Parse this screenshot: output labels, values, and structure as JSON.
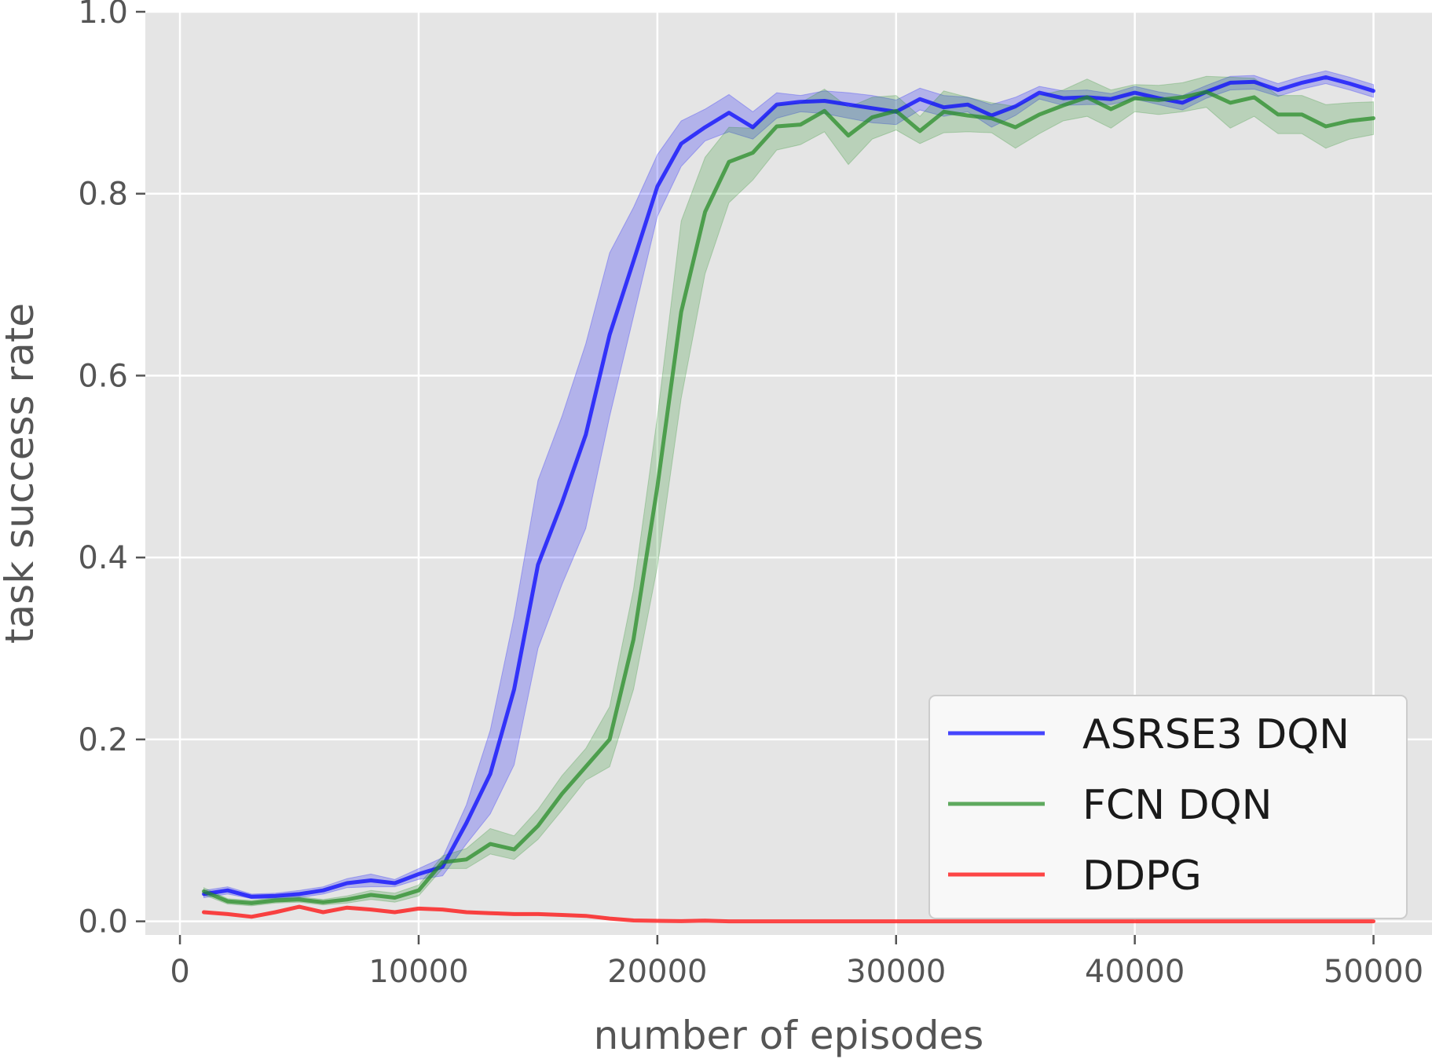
{
  "chart_data": {
    "type": "line",
    "title": "",
    "xlabel": "number of episodes",
    "ylabel": "task success rate",
    "xlim": [
      -1450,
      52450
    ],
    "ylim": [
      -0.015,
      1.0
    ],
    "xticks": [
      0,
      10000,
      20000,
      30000,
      40000,
      50000
    ],
    "xtick_labels": [
      "0",
      "10000",
      "20000",
      "30000",
      "40000",
      "50000"
    ],
    "yticks": [
      0.0,
      0.2,
      0.4,
      0.6,
      0.8,
      1.0
    ],
    "ytick_labels": [
      "0.0",
      "0.2",
      "0.4",
      "0.6",
      "0.8",
      "1.0"
    ],
    "grid": true,
    "legend_position": "lower-right",
    "x": [
      1000,
      2000,
      3000,
      4000,
      5000,
      6000,
      7000,
      8000,
      9000,
      10000,
      11000,
      12000,
      13000,
      14000,
      15000,
      16000,
      17000,
      18000,
      19000,
      20000,
      21000,
      22000,
      23000,
      24000,
      25000,
      26000,
      27000,
      28000,
      29000,
      30000,
      31000,
      32000,
      33000,
      34000,
      35000,
      36000,
      37000,
      38000,
      39000,
      40000,
      41000,
      42000,
      43000,
      44000,
      45000,
      46000,
      47000,
      48000,
      49000,
      50000
    ],
    "series": [
      {
        "name": "ASRSE3 DQN",
        "color": "#0000ff",
        "values": [
          0.03,
          0.034,
          0.027,
          0.028,
          0.03,
          0.034,
          0.042,
          0.045,
          0.042,
          0.052,
          0.06,
          0.108,
          0.162,
          0.255,
          0.392,
          0.46,
          0.535,
          0.645,
          0.726,
          0.808,
          0.855,
          0.873,
          0.889,
          0.873,
          0.898,
          0.901,
          0.902,
          0.898,
          0.894,
          0.89,
          0.904,
          0.895,
          0.898,
          0.886,
          0.896,
          0.911,
          0.905,
          0.906,
          0.904,
          0.911,
          0.905,
          0.9,
          0.912,
          0.922,
          0.923,
          0.914,
          0.922,
          0.928,
          0.921,
          0.913
        ],
        "lower": [
          0.026,
          0.03,
          0.025,
          0.025,
          0.026,
          0.03,
          0.037,
          0.038,
          0.038,
          0.046,
          0.05,
          0.085,
          0.118,
          0.172,
          0.3,
          0.37,
          0.432,
          0.555,
          0.665,
          0.775,
          0.83,
          0.858,
          0.868,
          0.86,
          0.883,
          0.89,
          0.888,
          0.883,
          0.878,
          0.876,
          0.892,
          0.885,
          0.89,
          0.873,
          0.886,
          0.904,
          0.897,
          0.898,
          0.898,
          0.904,
          0.898,
          0.892,
          0.905,
          0.914,
          0.915,
          0.907,
          0.915,
          0.921,
          0.914,
          0.906
        ],
        "upper": [
          0.034,
          0.038,
          0.03,
          0.031,
          0.034,
          0.038,
          0.047,
          0.052,
          0.046,
          0.058,
          0.07,
          0.128,
          0.21,
          0.335,
          0.485,
          0.555,
          0.635,
          0.735,
          0.785,
          0.843,
          0.88,
          0.893,
          0.909,
          0.89,
          0.911,
          0.908,
          0.913,
          0.911,
          0.908,
          0.903,
          0.916,
          0.908,
          0.906,
          0.898,
          0.906,
          0.918,
          0.913,
          0.914,
          0.91,
          0.918,
          0.912,
          0.908,
          0.919,
          0.929,
          0.93,
          0.921,
          0.929,
          0.935,
          0.928,
          0.92
        ]
      },
      {
        "name": "FCN DQN",
        "color": "#228b22",
        "values": [
          0.033,
          0.022,
          0.02,
          0.023,
          0.024,
          0.021,
          0.024,
          0.029,
          0.026,
          0.034,
          0.065,
          0.068,
          0.085,
          0.079,
          0.105,
          0.14,
          0.17,
          0.2,
          0.31,
          0.478,
          0.67,
          0.78,
          0.835,
          0.845,
          0.874,
          0.876,
          0.891,
          0.864,
          0.884,
          0.891,
          0.869,
          0.89,
          0.886,
          0.883,
          0.873,
          0.887,
          0.897,
          0.906,
          0.893,
          0.905,
          0.903,
          0.906,
          0.912,
          0.9,
          0.906,
          0.887,
          0.887,
          0.874,
          0.88,
          0.883
        ],
        "lower": [
          0.029,
          0.019,
          0.017,
          0.02,
          0.021,
          0.018,
          0.02,
          0.024,
          0.021,
          0.028,
          0.058,
          0.058,
          0.074,
          0.068,
          0.09,
          0.122,
          0.155,
          0.17,
          0.255,
          0.39,
          0.575,
          0.712,
          0.79,
          0.815,
          0.848,
          0.854,
          0.868,
          0.832,
          0.86,
          0.87,
          0.855,
          0.867,
          0.868,
          0.867,
          0.85,
          0.866,
          0.88,
          0.885,
          0.872,
          0.89,
          0.887,
          0.89,
          0.895,
          0.872,
          0.885,
          0.866,
          0.866,
          0.85,
          0.86,
          0.865
        ],
        "upper": [
          0.037,
          0.025,
          0.023,
          0.026,
          0.027,
          0.024,
          0.028,
          0.034,
          0.031,
          0.04,
          0.072,
          0.08,
          0.102,
          0.094,
          0.123,
          0.16,
          0.19,
          0.236,
          0.365,
          0.555,
          0.77,
          0.84,
          0.873,
          0.872,
          0.898,
          0.9,
          0.915,
          0.895,
          0.906,
          0.908,
          0.885,
          0.913,
          0.906,
          0.9,
          0.896,
          0.908,
          0.914,
          0.926,
          0.914,
          0.92,
          0.919,
          0.922,
          0.929,
          0.928,
          0.927,
          0.908,
          0.908,
          0.898,
          0.9,
          0.901
        ]
      },
      {
        "name": "DDPG",
        "color": "#ff0000",
        "values": [
          0.01,
          0.008,
          0.005,
          0.01,
          0.016,
          0.01,
          0.015,
          0.013,
          0.01,
          0.014,
          0.013,
          0.01,
          0.009,
          0.008,
          0.008,
          0.007,
          0.006,
          0.003,
          0.001,
          0.0005,
          0.0002,
          0.0008,
          0,
          0,
          0,
          0,
          0,
          0,
          0,
          0,
          0,
          0,
          0,
          0,
          0,
          0,
          0,
          0,
          0,
          0,
          0,
          0,
          0,
          0,
          0,
          0,
          0,
          0,
          0,
          0
        ]
      }
    ]
  }
}
